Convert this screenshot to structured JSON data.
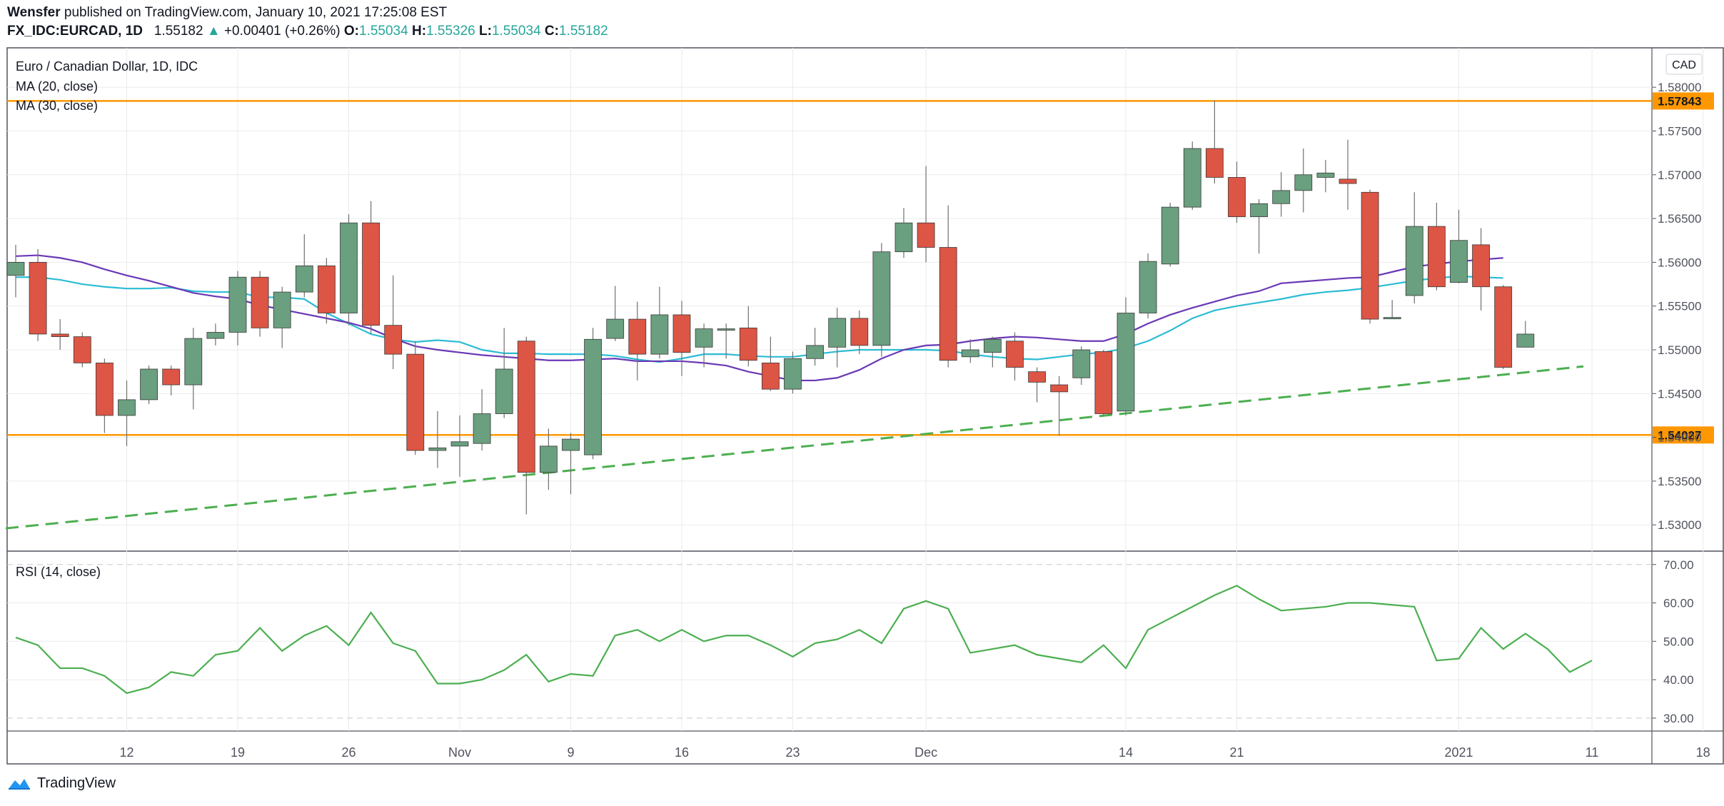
{
  "header": {
    "author": "Wensfer",
    "published": " published on TradingView.com, January 10, 2021 17:25:08 EST",
    "symbol": "FX_IDC:EURCAD, 1D",
    "price": "1.55182",
    "arrow": "▲",
    "change": "+0.00401 (+0.26%)",
    "o_label": "O:",
    "o_value": "1.55034",
    "h_label": "H:",
    "h_value": "1.55326",
    "l_label": "L:",
    "l_value": "1.55034",
    "c_label": "C:",
    "c_value": "1.55182"
  },
  "legend": {
    "title": "Euro / Canadian Dollar, 1D, IDC",
    "ma20": "MA (20, close)",
    "ma30": "MA (30, close)",
    "rsi": "RSI (14, close)",
    "currency": "CAD"
  },
  "brand": {
    "name": "TradingView"
  },
  "colors": {
    "up": "#6a9f7f",
    "down": "#dd5544",
    "ma20": "#2bbcd4",
    "ma30": "#6a38b5",
    "level": "#ff9800",
    "trend": "#4caf50",
    "rsi": "#4caf50",
    "grid": "#ebebeb"
  },
  "chart_data": [
    {
      "type": "candlestick",
      "title": "Euro / Canadian Dollar, 1D, IDC",
      "ylim": [
        1.527,
        1.5845
      ],
      "y_ticks": [
        "1.58000",
        "1.57500",
        "1.57000",
        "1.56500",
        "1.56000",
        "1.55500",
        "1.55000",
        "1.54500",
        "1.54000",
        "1.53500",
        "1.53000"
      ],
      "x_ticks": [
        {
          "i": 5,
          "label": "12"
        },
        {
          "i": 10,
          "label": "19"
        },
        {
          "i": 15,
          "label": "26"
        },
        {
          "i": 20,
          "label": "Nov"
        },
        {
          "i": 25,
          "label": "9"
        },
        {
          "i": 30,
          "label": "16"
        },
        {
          "i": 35,
          "label": "23"
        },
        {
          "i": 41,
          "label": "Dec"
        },
        {
          "i": 50,
          "label": "14"
        },
        {
          "i": 55,
          "label": "21"
        },
        {
          "i": 65,
          "label": "2021"
        },
        {
          "i": 71,
          "label": "11"
        },
        {
          "i": 76,
          "label": "18"
        }
      ],
      "candles": [
        [
          1.5585,
          1.56,
          1.556,
          1.562
        ],
        [
          1.56,
          1.5518,
          1.551,
          1.5615
        ],
        [
          1.5518,
          1.5515,
          1.55,
          1.5535
        ],
        [
          1.5515,
          1.5485,
          1.548,
          1.552
        ],
        [
          1.5485,
          1.5425,
          1.5405,
          1.549
        ],
        [
          1.5425,
          1.5443,
          1.539,
          1.5465
        ],
        [
          1.5443,
          1.5478,
          1.5438,
          1.5482
        ],
        [
          1.5478,
          1.546,
          1.5448,
          1.5482
        ],
        [
          1.546,
          1.5513,
          1.5432,
          1.5525
        ],
        [
          1.5513,
          1.552,
          1.5505,
          1.553
        ],
        [
          1.552,
          1.5583,
          1.5505,
          1.559
        ],
        [
          1.5583,
          1.5525,
          1.5515,
          1.559
        ],
        [
          1.5525,
          1.5566,
          1.5502,
          1.5572
        ],
        [
          1.5566,
          1.5596,
          1.556,
          1.5632
        ],
        [
          1.5596,
          1.5542,
          1.553,
          1.5605
        ],
        [
          1.5542,
          1.5645,
          1.5528,
          1.5655
        ],
        [
          1.5645,
          1.5528,
          1.5518,
          1.567
        ],
        [
          1.5528,
          1.5495,
          1.5478,
          1.5585
        ],
        [
          1.5495,
          1.5385,
          1.538,
          1.551
        ],
        [
          1.5385,
          1.5388,
          1.5365,
          1.543
        ],
        [
          1.539,
          1.5395,
          1.5355,
          1.5425
        ],
        [
          1.5393,
          1.5427,
          1.5385,
          1.5455
        ],
        [
          1.5427,
          1.5478,
          1.5422,
          1.5525
        ],
        [
          1.551,
          1.536,
          1.5312,
          1.5515
        ],
        [
          1.536,
          1.539,
          1.534,
          1.541
        ],
        [
          1.5385,
          1.5398,
          1.5335,
          1.5405
        ],
        [
          1.538,
          1.5512,
          1.5375,
          1.5525
        ],
        [
          1.5513,
          1.5535,
          1.551,
          1.5573
        ],
        [
          1.5535,
          1.5495,
          1.5465,
          1.5555
        ],
        [
          1.5495,
          1.554,
          1.549,
          1.5572
        ],
        [
          1.554,
          1.5497,
          1.547,
          1.5556
        ],
        [
          1.5503,
          1.5524,
          1.548,
          1.553
        ],
        [
          1.5524,
          1.5524,
          1.549,
          1.553
        ],
        [
          1.5525,
          1.5488,
          1.5481,
          1.555
        ],
        [
          1.5485,
          1.5455,
          1.5453,
          1.5515
        ],
        [
          1.5455,
          1.549,
          1.545,
          1.5498
        ],
        [
          1.549,
          1.5505,
          1.5482,
          1.5525
        ],
        [
          1.5503,
          1.5536,
          1.548,
          1.5548
        ],
        [
          1.5536,
          1.5505,
          1.5495,
          1.5545
        ],
        [
          1.5505,
          1.5612,
          1.5492,
          1.5622
        ],
        [
          1.5612,
          1.5645,
          1.5605,
          1.5662
        ],
        [
          1.5645,
          1.5617,
          1.56,
          1.571
        ],
        [
          1.5617,
          1.5488,
          1.548,
          1.5665
        ],
        [
          1.5492,
          1.55,
          1.5485,
          1.5512
        ],
        [
          1.5497,
          1.5512,
          1.548,
          1.5515
        ],
        [
          1.551,
          1.548,
          1.5465,
          1.552
        ],
        [
          1.5475,
          1.5463,
          1.544,
          1.548
        ],
        [
          1.546,
          1.5452,
          1.5402,
          1.547
        ],
        [
          1.5468,
          1.55,
          1.546,
          1.5504
        ],
        [
          1.5498,
          1.5427,
          1.5424,
          1.55
        ],
        [
          1.543,
          1.5542,
          1.5425,
          1.556
        ],
        [
          1.5542,
          1.5601,
          1.5536,
          1.561
        ],
        [
          1.5598,
          1.5663,
          1.5595,
          1.5668
        ],
        [
          1.5663,
          1.573,
          1.566,
          1.5738
        ],
        [
          1.573,
          1.5697,
          1.569,
          1.5785
        ],
        [
          1.5697,
          1.5652,
          1.5645,
          1.5715
        ],
        [
          1.5652,
          1.5667,
          1.561,
          1.5672
        ],
        [
          1.5667,
          1.5682,
          1.5652,
          1.5703
        ],
        [
          1.5682,
          1.57,
          1.5657,
          1.573
        ],
        [
          1.5697,
          1.5702,
          1.568,
          1.5717
        ],
        [
          1.5695,
          1.569,
          1.566,
          1.574
        ],
        [
          1.568,
          1.5535,
          1.553,
          1.5683
        ],
        [
          1.5536,
          1.5537,
          1.5536,
          1.5557
        ],
        [
          1.5562,
          1.5641,
          1.5553,
          1.568
        ],
        [
          1.5641,
          1.5572,
          1.5568,
          1.5668
        ],
        [
          1.5577,
          1.5625,
          1.5576,
          1.566
        ],
        [
          1.562,
          1.5572,
          1.5545,
          1.5639
        ],
        [
          1.5572,
          1.548,
          1.5478,
          1.5574
        ],
        [
          1.5503,
          1.5518,
          1.5503,
          1.5533
        ]
      ]
    },
    {
      "type": "line",
      "series": [
        {
          "name": "MA (20, close)",
          "values": [
            1.5583,
            1.5583,
            1.558,
            1.5575,
            1.5572,
            1.557,
            1.557,
            1.5571,
            1.5567,
            1.5566,
            1.5566,
            1.556,
            1.556,
            1.5558,
            1.5542,
            1.553,
            1.5518,
            1.5512,
            1.5509,
            1.5511,
            1.5509,
            1.55,
            1.5496,
            1.5496,
            1.5495,
            1.5495,
            1.5495,
            1.5493,
            1.5489,
            1.5486,
            1.549,
            1.5495,
            1.5495,
            1.5493,
            1.5492,
            1.5492,
            1.5495,
            1.5498,
            1.55,
            1.55,
            1.55,
            1.55,
            1.5499,
            1.5495,
            1.5492,
            1.549,
            1.5489,
            1.5492,
            1.5495,
            1.5497,
            1.5502,
            1.551,
            1.5522,
            1.5536,
            1.5545,
            1.555,
            1.5554,
            1.5558,
            1.5563,
            1.5566,
            1.5568,
            1.5571,
            1.5575,
            1.5579,
            1.5582,
            1.5584,
            1.5583,
            1.5582
          ]
        },
        {
          "name": "MA (30, close)",
          "values": [
            1.5607,
            1.5608,
            1.5605,
            1.56,
            1.5592,
            1.5585,
            1.5579,
            1.5572,
            1.5565,
            1.5561,
            1.5558,
            1.5551,
            1.5546,
            1.5541,
            1.5536,
            1.5531,
            1.5524,
            1.5513,
            1.5504,
            1.55,
            1.5497,
            1.5494,
            1.5492,
            1.549,
            1.5488,
            1.5488,
            1.5489,
            1.549,
            1.5487,
            1.5487,
            1.5487,
            1.5485,
            1.5482,
            1.5475,
            1.547,
            1.5465,
            1.5465,
            1.5468,
            1.5477,
            1.549,
            1.55,
            1.5505,
            1.5506,
            1.551,
            1.5513,
            1.5515,
            1.5514,
            1.5512,
            1.551,
            1.551,
            1.5518,
            1.553,
            1.554,
            1.5548,
            1.5555,
            1.5562,
            1.5567,
            1.5576,
            1.5578,
            1.558,
            1.5582,
            1.5583,
            1.5589,
            1.5595,
            1.5598,
            1.5601,
            1.5603,
            1.5605
          ]
        }
      ]
    },
    {
      "type": "line",
      "title": "RSI (14, close)",
      "ylim": [
        27,
        72
      ],
      "y_ticks": [
        "70.00",
        "60.00",
        "50.00",
        "40.00",
        "30.00"
      ],
      "values": [
        51,
        49,
        43,
        43,
        41,
        36.5,
        38,
        42,
        41,
        46.5,
        47.5,
        53.5,
        47.5,
        51.5,
        54,
        49,
        57.5,
        49.5,
        47.5,
        39,
        39,
        40,
        42.5,
        46.5,
        39.5,
        41.5,
        41,
        51.5,
        53,
        50,
        53,
        50,
        51.5,
        51.5,
        49,
        46,
        49.5,
        50.5,
        53,
        49.5,
        58.5,
        60.5,
        58.5,
        47,
        48,
        49,
        46.5,
        45.5,
        44.5,
        49,
        43,
        53,
        56,
        59,
        62,
        64.5,
        61,
        58,
        58.5,
        59,
        60,
        60,
        59.5,
        59,
        45,
        45.5,
        53.5,
        48,
        52,
        48,
        42,
        45
      ]
    }
  ],
  "levels": [
    "1.57843",
    "1.54027"
  ]
}
